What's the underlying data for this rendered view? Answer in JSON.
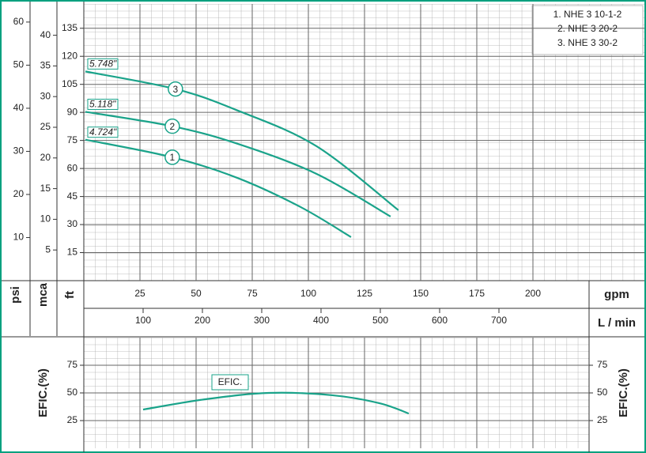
{
  "chart_data": [
    {
      "type": "line",
      "y3label": "psi",
      "y2label": "mca",
      "ylabel": "ft",
      "xlabel": "gpm",
      "x2label": "L / min",
      "xlim": [
        0,
        225
      ],
      "xticks": [
        25,
        50,
        75,
        100,
        125,
        150,
        175,
        200
      ],
      "x2lim": [
        0,
        852
      ],
      "x2ticks": [
        100,
        200,
        300,
        400,
        500,
        600,
        700
      ],
      "ylim": [
        0,
        148
      ],
      "yticks": [
        15,
        30,
        45,
        60,
        75,
        90,
        105,
        120,
        135
      ],
      "y2lim": [
        0,
        45.1
      ],
      "y2ticks": [
        5,
        10,
        15,
        20,
        25,
        30,
        35,
        40
      ],
      "y3lim": [
        0,
        64.2
      ],
      "y3ticks": [
        10,
        20,
        30,
        40,
        50,
        60
      ],
      "grid": true,
      "series": [
        {
          "name": "1. NHE 3 10-1-2",
          "marker": "1",
          "annotation": "4.724\"",
          "color": "#1aa38a",
          "x": [
            0.7,
            39.4,
            68.3,
            96.5,
            119
          ],
          "values": [
            75.4,
            66,
            55,
            39.4,
            23.3
          ]
        },
        {
          "name": "2. NHE 3 20-2",
          "marker": "2",
          "annotation": "5.118\"",
          "color": "#1aa38a",
          "x": [
            0.7,
            39.4,
            68.3,
            103.5,
            136.6
          ],
          "values": [
            90.3,
            82.6,
            73.3,
            57.2,
            34.3
          ]
        },
        {
          "name": "3. NHE 3 30-2",
          "marker": "3",
          "annotation": "5.748\"",
          "color": "#1aa38a",
          "x": [
            0.7,
            40.8,
            68.3,
            103.5,
            140.1
          ],
          "values": [
            111.9,
            102.5,
            91.1,
            72,
            37.7
          ]
        }
      ]
    },
    {
      "type": "line",
      "ylabel": "EFIC.(%)",
      "xlim": [
        0,
        225
      ],
      "ylim": [
        0,
        100
      ],
      "yticks": [
        25,
        50,
        75
      ],
      "grid": true,
      "series": [
        {
          "name": "EFIC.",
          "color": "#1aa38a",
          "x": [
            26.4,
            54.2,
            82.4,
            110.6,
            131.7,
            144.7
          ],
          "values": [
            35,
            44.3,
            50,
            47.9,
            40.7,
            31.4
          ]
        }
      ]
    }
  ]
}
